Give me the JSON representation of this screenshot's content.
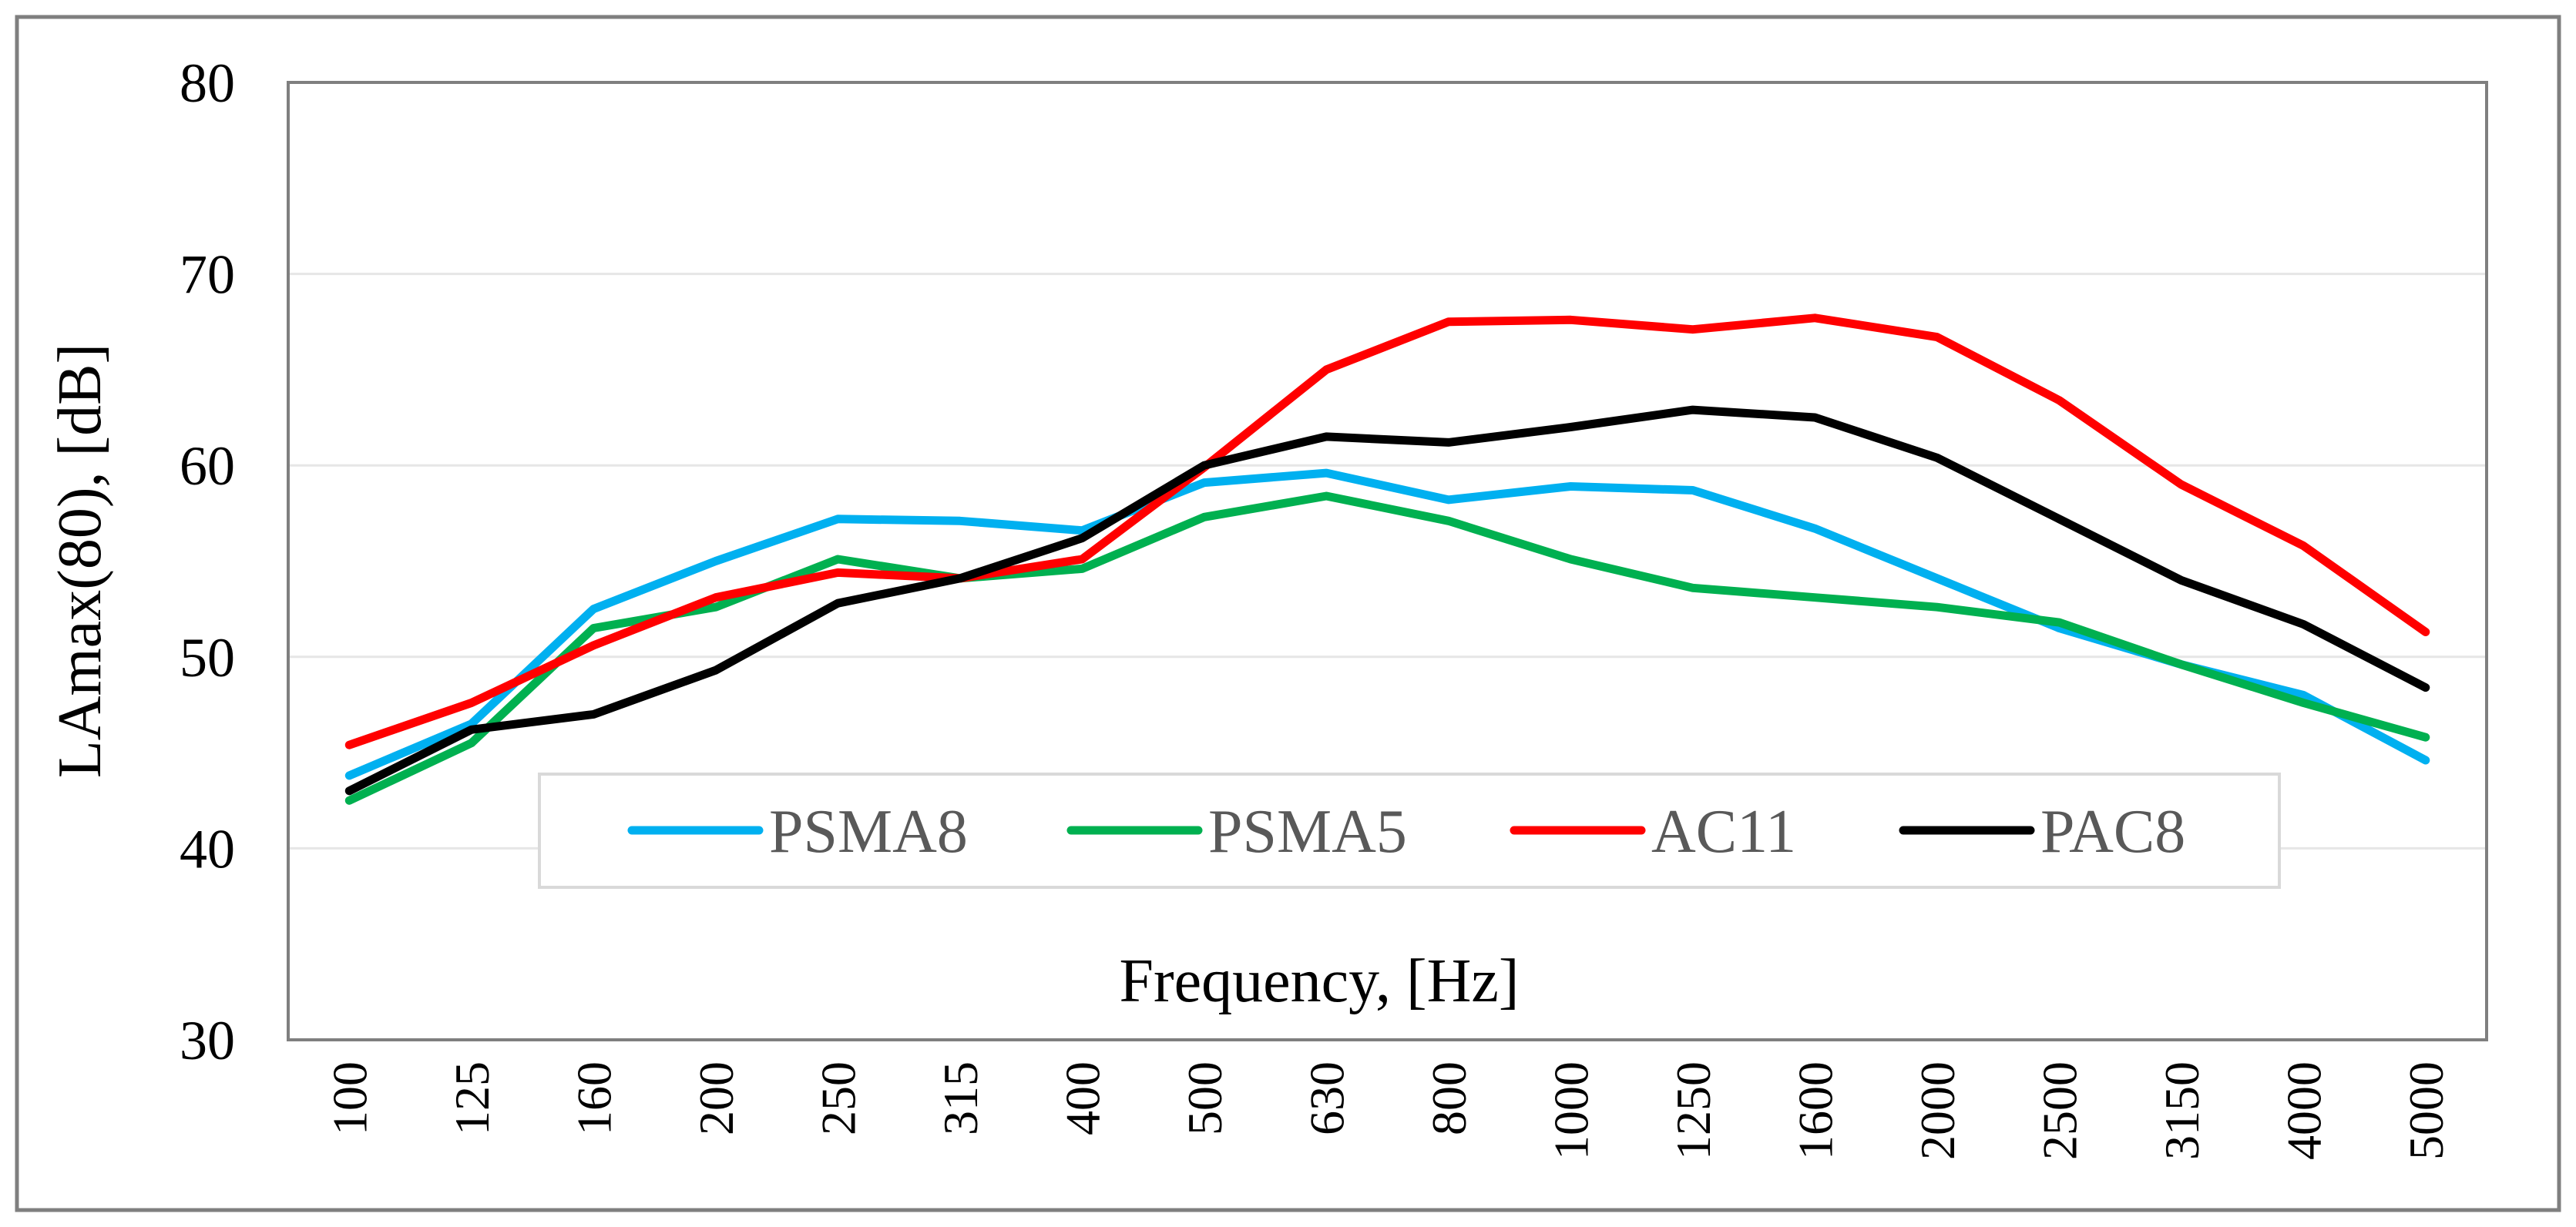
{
  "chart_data": {
    "type": "line",
    "title": "",
    "xlabel": "Frequency, [Hz]",
    "ylabel": "LAmax(80), [dB]",
    "ylim": [
      30,
      80
    ],
    "yticks": [
      30,
      40,
      50,
      60,
      70,
      80
    ],
    "grid": true,
    "legend_position": "bottom-center inside plot",
    "categories": [
      "100",
      "125",
      "160",
      "200",
      "250",
      "315",
      "400",
      "500",
      "630",
      "800",
      "1000",
      "1250",
      "1600",
      "2000",
      "2500",
      "3150",
      "4000",
      "5000"
    ],
    "series": [
      {
        "name": "PSMA8",
        "color": "#00B0F0",
        "values": [
          43.8,
          46.5,
          52.5,
          55.0,
          57.2,
          57.1,
          56.6,
          59.1,
          59.6,
          58.2,
          58.9,
          58.7,
          56.7,
          54.1,
          51.5,
          49.6,
          48.0,
          44.6
        ]
      },
      {
        "name": "PSMA5",
        "color": "#00B050",
        "values": [
          42.5,
          45.5,
          51.5,
          52.6,
          55.1,
          54.1,
          54.6,
          57.3,
          58.4,
          57.1,
          55.1,
          53.6,
          53.1,
          52.6,
          51.8,
          49.6,
          47.6,
          45.8
        ]
      },
      {
        "name": "AC11",
        "color": "#FF0000",
        "values": [
          45.4,
          47.6,
          50.6,
          53.1,
          54.4,
          54.1,
          55.1,
          59.9,
          65.0,
          67.5,
          67.6,
          67.1,
          67.7,
          66.7,
          63.4,
          59.0,
          55.8,
          51.3
        ]
      },
      {
        "name": "PAC8",
        "color": "#000000",
        "values": [
          43.0,
          46.2,
          47.0,
          49.3,
          52.8,
          54.1,
          56.2,
          60.0,
          61.5,
          61.2,
          62.0,
          62.9,
          62.5,
          60.4,
          57.2,
          54.0,
          51.7,
          48.4
        ]
      }
    ]
  }
}
